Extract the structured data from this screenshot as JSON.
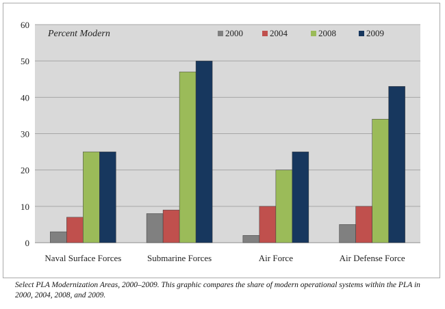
{
  "chart_data": {
    "type": "bar",
    "title": "Percent Modern",
    "categories": [
      "Naval Surface Forces",
      "Submarine Forces",
      "Air Force",
      "Air Defense Force"
    ],
    "series": [
      {
        "name": "2000",
        "color": "#808080",
        "values": [
          3,
          8,
          2,
          5
        ]
      },
      {
        "name": "2004",
        "color": "#c0504d",
        "values": [
          7,
          9,
          10,
          10
        ]
      },
      {
        "name": "2008",
        "color": "#9bbb59",
        "values": [
          25,
          47,
          20,
          34
        ]
      },
      {
        "name": "2009",
        "color": "#17375e",
        "values": [
          25,
          50,
          25,
          43
        ]
      }
    ],
    "ylim": [
      0,
      60
    ],
    "yticks": [
      0,
      10,
      20,
      30,
      40,
      50,
      60
    ],
    "xlabel": "",
    "ylabel": "",
    "grid": true,
    "legend_position": "top-right",
    "plot_background": "#d9d9d9"
  },
  "caption": "Select PLA Modernization Areas, 2000–2009.  This graphic compares the share of modern operational systems within the PLA in 2000, 2004, 2008, and 2009."
}
